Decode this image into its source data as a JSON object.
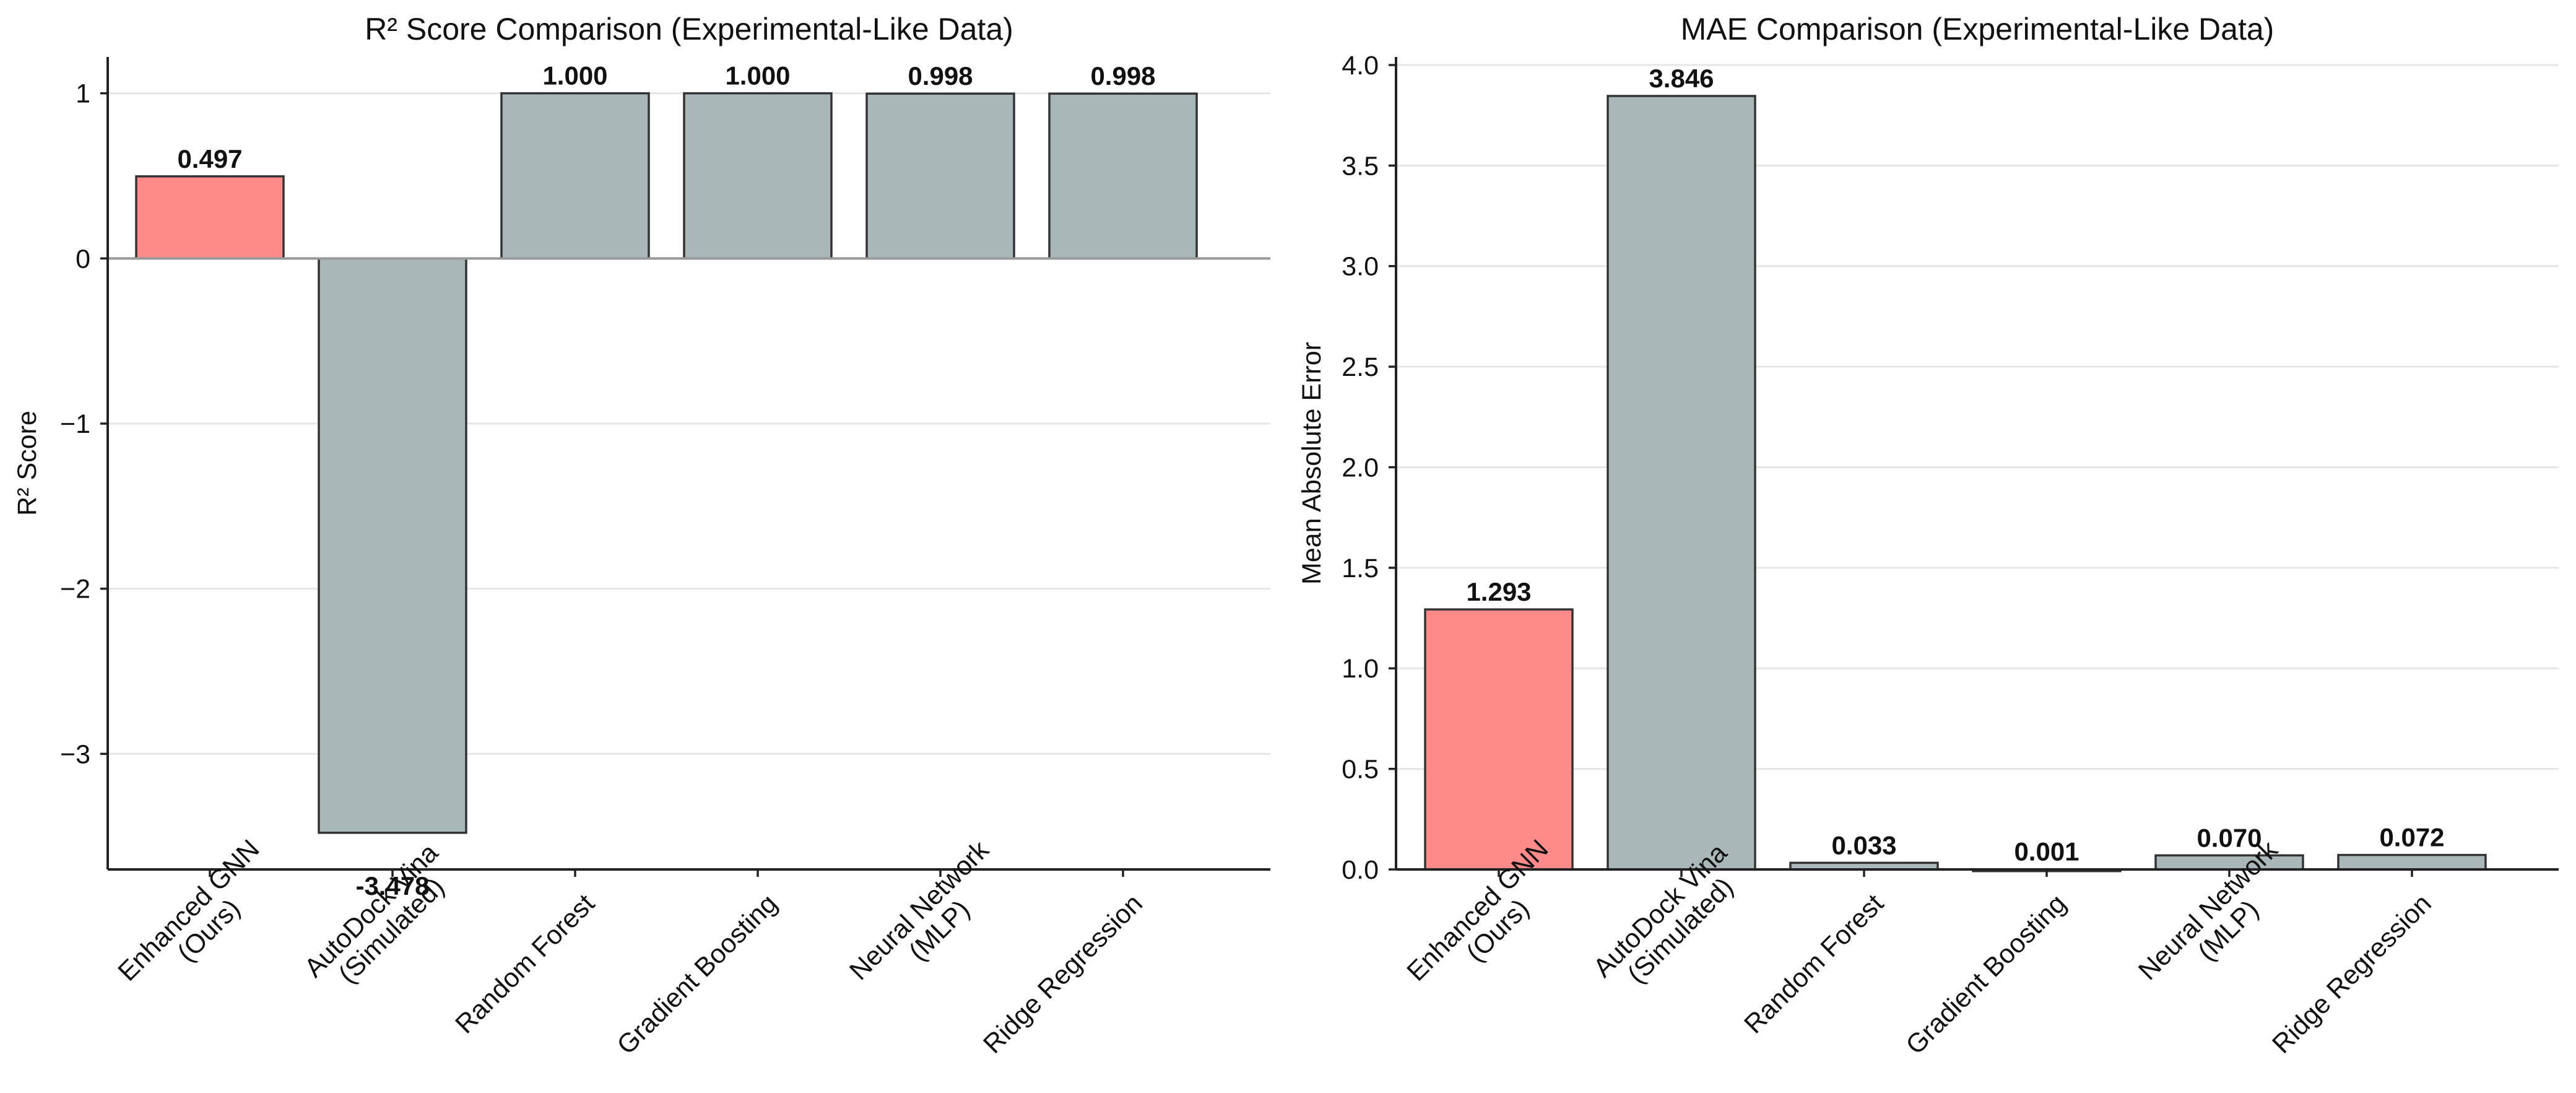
{
  "charts": [
    {
      "type": "bar",
      "title": "R² Score Comparison (Experimental-Like Data)",
      "ylabel": "R² Score",
      "categories": [
        [
          "Enhanced GNN",
          "(Ours)"
        ],
        [
          "AutoDock Vina",
          "(Simulated)"
        ],
        [
          "Random Forest"
        ],
        [
          "Gradient Boosting"
        ],
        [
          "Neural Network",
          "(MLP)"
        ],
        [
          "Ridge Regression"
        ]
      ],
      "values": [
        0.497,
        -3.478,
        1.0,
        1.0,
        0.998,
        0.998
      ],
      "value_labels": [
        "0.497",
        "-3.478",
        "1.000",
        "1.000",
        "0.998",
        "0.998"
      ],
      "colors": [
        "#ff8a8a",
        "#aab7b8",
        "#aab7b8",
        "#aab7b8",
        "#aab7b8",
        "#aab7b8"
      ],
      "ylim": [
        -3.7,
        1.22
      ],
      "yticks": [
        1,
        0,
        -1,
        -2,
        -3
      ],
      "ytick_labels": [
        "1",
        "0",
        "−1",
        "−2",
        "−3"
      ],
      "zero_line": true,
      "grid": "horizontal"
    },
    {
      "type": "bar",
      "title": "MAE Comparison (Experimental-Like Data)",
      "ylabel": "Mean Absolute Error",
      "categories": [
        [
          "Enhanced GNN",
          "(Ours)"
        ],
        [
          "AutoDock Vina",
          "(Simulated)"
        ],
        [
          "Random Forest"
        ],
        [
          "Gradient Boosting"
        ],
        [
          "Neural Network",
          "(MLP)"
        ],
        [
          "Ridge Regression"
        ]
      ],
      "values": [
        1.293,
        3.846,
        0.033,
        0.001,
        0.07,
        0.072
      ],
      "value_labels": [
        "1.293",
        "3.846",
        "0.033",
        "0.001",
        "0.070",
        "0.072"
      ],
      "colors": [
        "#ff8a8a",
        "#aab7b8",
        "#aab7b8",
        "#aab7b8",
        "#aab7b8",
        "#aab7b8"
      ],
      "ylim": [
        0,
        4.04
      ],
      "yticks": [
        0.0,
        0.5,
        1.0,
        1.5,
        2.0,
        2.5,
        3.0,
        3.5,
        4.0
      ],
      "ytick_labels": [
        "0.0",
        "0.5",
        "1.0",
        "1.5",
        "2.0",
        "2.5",
        "3.0",
        "3.5",
        "4.0"
      ],
      "zero_line": false,
      "grid": "horizontal"
    }
  ],
  "chart_data": [
    {
      "type": "bar",
      "title": "R² Score Comparison (Experimental-Like Data)",
      "xlabel": "",
      "ylabel": "R² Score",
      "categories": [
        "Enhanced GNN (Ours)",
        "AutoDock Vina (Simulated)",
        "Random Forest",
        "Gradient Boosting",
        "Neural Network (MLP)",
        "Ridge Regression"
      ],
      "values": [
        0.497,
        -3.478,
        1.0,
        1.0,
        0.998,
        0.998
      ],
      "ylim": [
        -3.7,
        1.22
      ],
      "grid": true
    },
    {
      "type": "bar",
      "title": "MAE Comparison (Experimental-Like Data)",
      "xlabel": "",
      "ylabel": "Mean Absolute Error",
      "categories": [
        "Enhanced GNN (Ours)",
        "AutoDock Vina (Simulated)",
        "Random Forest",
        "Gradient Boosting",
        "Neural Network (MLP)",
        "Ridge Regression"
      ],
      "values": [
        1.293,
        3.846,
        0.033,
        0.001,
        0.07,
        0.072
      ],
      "ylim": [
        0,
        4.04
      ],
      "grid": true
    }
  ]
}
